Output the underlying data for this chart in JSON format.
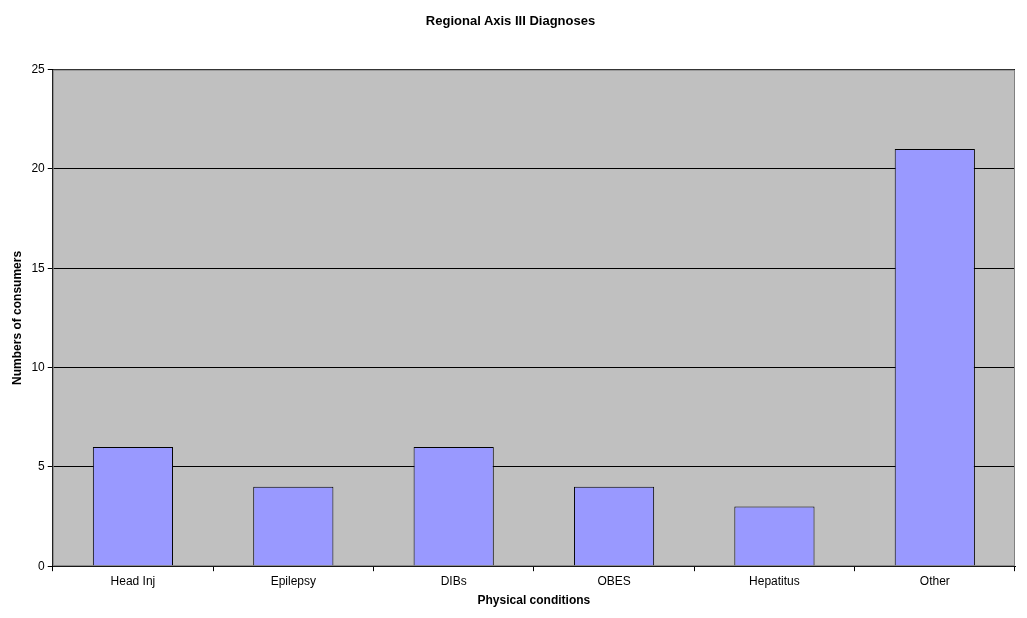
{
  "chart_data": {
    "type": "bar",
    "title": "Regional Axis III Diagnoses",
    "xlabel": "Physical conditions",
    "ylabel": "Numbers of consumers",
    "categories": [
      "Head Inj",
      "Epilepsy",
      "DIBs",
      "OBES",
      "Hepatitus",
      "Other"
    ],
    "values": [
      6,
      4,
      6,
      4,
      3,
      21
    ],
    "color": "#9999ff",
    "ylim": [
      0,
      25
    ],
    "yticks": [
      0,
      5,
      10,
      15,
      20,
      25
    ],
    "grid": "y",
    "legend": false
  }
}
